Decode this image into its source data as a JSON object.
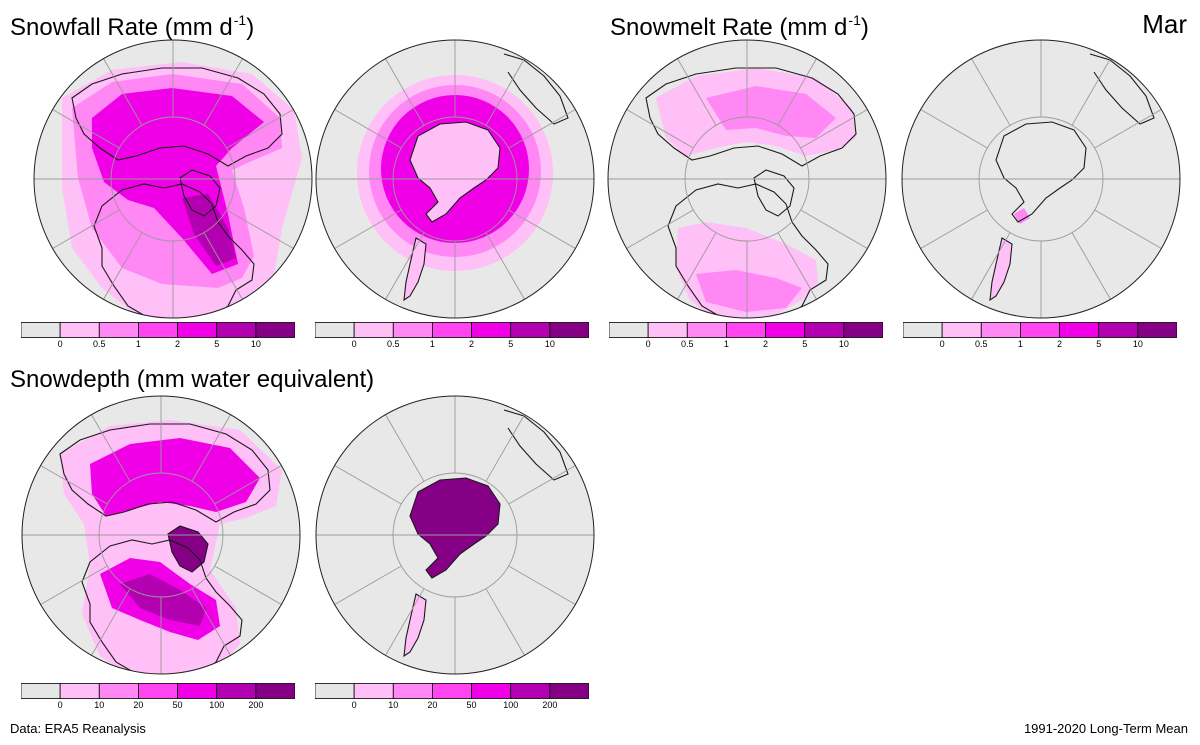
{
  "panels": {
    "snowfall": {
      "title": "Snowfall Rate (mm  d",
      "unit_exponent": "-1",
      "title_close": ")"
    },
    "snowmelt": {
      "title": "Snowmelt Rate (mm  d",
      "unit_exponent": "-1",
      "title_close": ")"
    },
    "snowdepth": {
      "title": "Snowdepth (mm water equivalent)"
    }
  },
  "month_label": "Mar",
  "footer": {
    "source": "Data: ERA5 Reanalysis",
    "period": "1991-2020 Long-Term Mean"
  },
  "colorbars": {
    "rate_ticks": [
      "0",
      "0.5",
      "1",
      "2",
      "5",
      "10"
    ],
    "depth_ticks": [
      "0",
      "10",
      "20",
      "50",
      "100",
      "200"
    ],
    "colors": [
      "#e6e6e6",
      "#ffbff7",
      "#ff88f5",
      "#ff44f0",
      "#f000e6",
      "#b300b0",
      "#850085"
    ]
  },
  "colors": {
    "ocean": "#e8e8e8",
    "land_outline": "#1a1a1a",
    "graticule": "#9a9a9a",
    "shade_1": "#ffbff7",
    "shade_2": "#ff88f5",
    "shade_3": "#f000e6",
    "shade_4": "#b300b0",
    "shade_5": "#850085"
  }
}
